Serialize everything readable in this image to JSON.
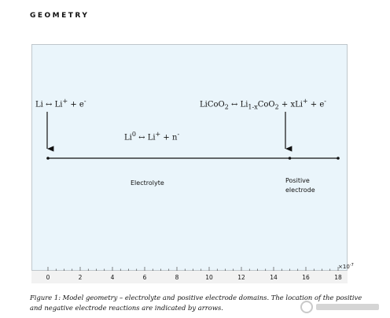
{
  "header": {
    "title": "GEOMETRY"
  },
  "reactions": {
    "left": {
      "base": "Li",
      "arrow": "↔",
      "mid": "Li",
      "sup": "+",
      "tail": " + e",
      "tail_sup": "-"
    },
    "center": {
      "base": "Li",
      "base_sup": "0",
      "arrow": "↔",
      "mid": "Li",
      "sup": "+",
      "tail": " + n",
      "tail_sup": "-"
    },
    "right": {
      "p1": "LiCoO",
      "s1": "2",
      "arrow": "↔",
      "p2": "Li",
      "s2": "1-x",
      "p3": "CoO",
      "s3": "2",
      "p4": " + xLi",
      "sup": "+",
      "p5": " + e",
      "sup2": "-"
    }
  },
  "regions": {
    "electrolyte": "Electrolyte",
    "positive_line1": "Positive",
    "positive_line2": "electrode"
  },
  "geometry": {
    "electrolyte_end": 15,
    "electrode_end": 18
  },
  "axis": {
    "min": 0,
    "max": 18,
    "ticks": [
      0,
      2,
      4,
      6,
      8,
      10,
      12,
      14,
      16,
      18
    ],
    "multiplier": "×10",
    "multiplier_exp": "-7"
  },
  "caption": "Figure 1: Model geometry – electrolyte and positive electrode domains. The location of the positive and negative electrode reactions are indicated by arrows.",
  "colors": {
    "panel": "#eaf5fb",
    "ink": "#111111"
  }
}
